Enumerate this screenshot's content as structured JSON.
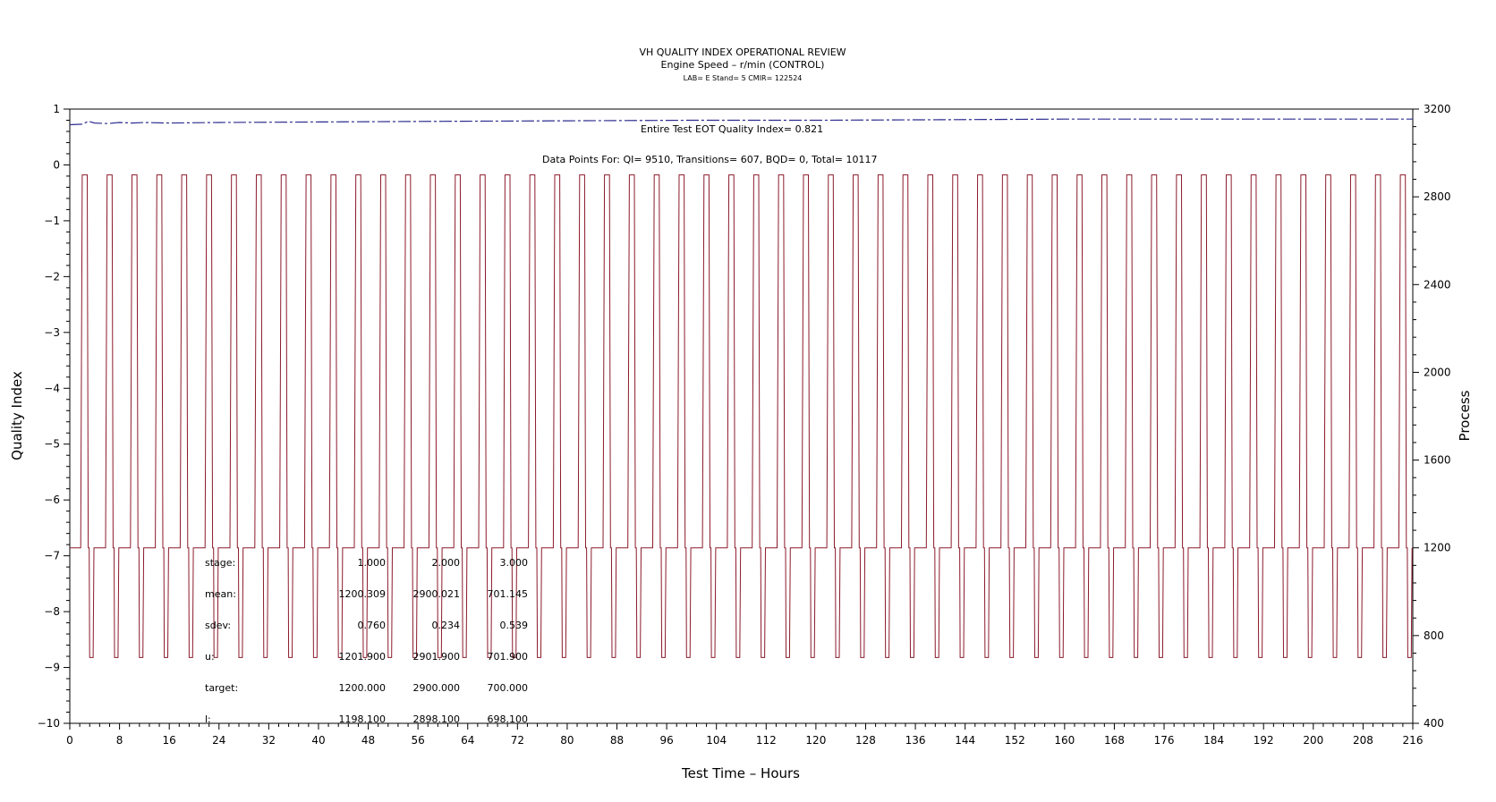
{
  "chart_data": {
    "type": "line",
    "title": "VH QUALITY INDEX OPERATIONAL REVIEW",
    "subtitle": "Engine Speed – r/min (CONTROL)",
    "subtitle2": "LAB= E Stand= 5 CMIR= 122524",
    "xlabel": "Test Time – Hours",
    "ylabel_left": "Quality Index",
    "ylabel_right": "Process",
    "xlim": [
      0,
      216
    ],
    "ylim_left": [
      -10,
      1
    ],
    "ylim_right": [
      400,
      3200
    ],
    "x_ticks": [
      "0",
      "8",
      "16",
      "24",
      "32",
      "40",
      "48",
      "56",
      "64",
      "72",
      "80",
      "88",
      "96",
      "104",
      "112",
      "120",
      "128",
      "136",
      "144",
      "152",
      "160",
      "168",
      "176",
      "184",
      "192",
      "200",
      "208",
      "216"
    ],
    "y_left_ticks": [
      "1",
      "0",
      "−1",
      "−2",
      "−3",
      "−4",
      "−5",
      "−6",
      "−7",
      "−8",
      "−9",
      "−10"
    ],
    "y_right_ticks": [
      "3200",
      "2800",
      "2400",
      "2000",
      "1600",
      "1200",
      "800",
      "400"
    ],
    "annotations": {
      "eot": "Entire Test EOT Quality Index=   0.821",
      "points": "Data Points For: QI=  9510, Transitions=   607, BQD=     0, Total= 10117"
    },
    "quality_index_series": {
      "name": "Quality Index",
      "color": "#2b2b8f",
      "x": [
        0,
        2,
        3,
        4,
        6,
        8,
        10,
        12,
        16,
        24,
        40,
        60,
        80,
        100,
        120,
        140,
        160,
        180,
        200,
        216
      ],
      "y": [
        0.72,
        0.73,
        0.78,
        0.75,
        0.74,
        0.76,
        0.75,
        0.76,
        0.75,
        0.76,
        0.77,
        0.78,
        0.79,
        0.8,
        0.8,
        0.81,
        0.82,
        0.82,
        0.82,
        0.82
      ]
    },
    "process_series": {
      "name": "Process",
      "color": "#8b1a2b",
      "cycle_hours": 4,
      "start_hour": 0,
      "cycles": 54,
      "stage_levels": [
        1200,
        2900,
        700
      ]
    },
    "stats_table": {
      "row_labels": [
        "stage:",
        "mean:",
        "sdev:",
        "u:",
        "target:",
        "l:"
      ],
      "columns": [
        [
          "1.000",
          "1200.309",
          "0.760",
          "1201.900",
          "1200.000",
          "1198.100"
        ],
        [
          "2.000",
          "2900.021",
          "0.234",
          "2901.900",
          "2900.000",
          "2898.100"
        ],
        [
          "3.000",
          "701.145",
          "0.539",
          "701.900",
          "700.000",
          "698.100"
        ]
      ]
    }
  }
}
